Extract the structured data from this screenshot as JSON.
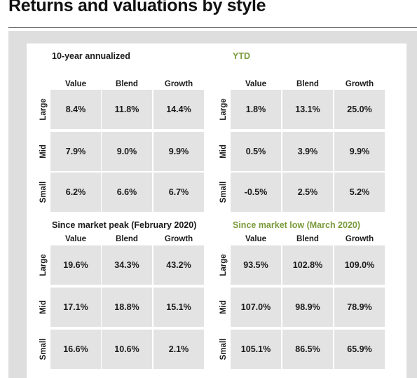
{
  "title": "Returns and valuations by style",
  "chart_data": {
    "type": "table",
    "panels": [
      {
        "title": "10-year annualized",
        "title_color": "#1a1a1a",
        "columns": [
          "Value",
          "Blend",
          "Growth"
        ],
        "rows": [
          {
            "label": "Large",
            "values": [
              "8.4%",
              "11.8%",
              "14.4%"
            ]
          },
          {
            "label": "Mid",
            "values": [
              "7.9%",
              "9.0%",
              "9.9%"
            ]
          },
          {
            "label": "Small",
            "values": [
              "6.2%",
              "6.6%",
              "6.7%"
            ]
          }
        ]
      },
      {
        "title": "YTD",
        "title_color": "#7a9a3a",
        "columns": [
          "Value",
          "Blend",
          "Growth"
        ],
        "rows": [
          {
            "label": "Large",
            "values": [
              "1.8%",
              "13.1%",
              "25.0%"
            ]
          },
          {
            "label": "Mid",
            "values": [
              "0.5%",
              "3.9%",
              "9.9%"
            ]
          },
          {
            "label": "Small",
            "values": [
              "-0.5%",
              "2.5%",
              "5.2%"
            ]
          }
        ]
      },
      {
        "title": "Since market peak (February 2020)",
        "title_color": "#1a1a1a",
        "columns": [
          "Value",
          "Blend",
          "Growth"
        ],
        "rows": [
          {
            "label": "Large",
            "values": [
              "19.6%",
              "34.3%",
              "43.2%"
            ]
          },
          {
            "label": "Mid",
            "values": [
              "17.1%",
              "18.8%",
              "15.1%"
            ]
          },
          {
            "label": "Small",
            "values": [
              "16.6%",
              "10.6%",
              "2.1%"
            ]
          }
        ]
      },
      {
        "title": "Since market low (March 2020)",
        "title_color": "#7a9a3a",
        "columns": [
          "Value",
          "Blend",
          "Growth"
        ],
        "rows": [
          {
            "label": "Large",
            "values": [
              "93.5%",
              "102.8%",
              "109.0%"
            ]
          },
          {
            "label": "Mid",
            "values": [
              "107.0%",
              "98.9%",
              "78.9%"
            ]
          },
          {
            "label": "Small",
            "values": [
              "105.1%",
              "86.5%",
              "65.9%"
            ]
          }
        ]
      }
    ]
  }
}
